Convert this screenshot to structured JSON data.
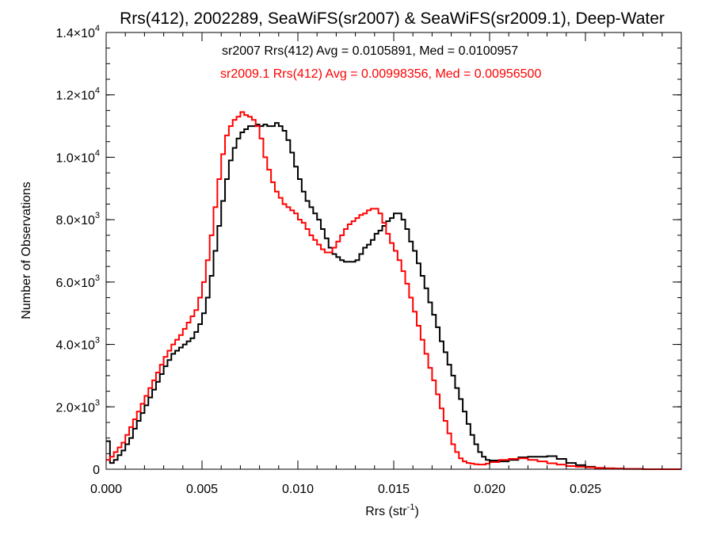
{
  "chart_data": {
    "type": "line",
    "title": "Rrs(412), 2002289, SeaWiFS(sr2007) & SeaWiFS(sr2009.1), Deep-Water",
    "xlabel": "Rrs (str",
    "xlabel_sup": "-1",
    "xlabel_end": ")",
    "ylabel": "Number of Observations",
    "xlim": [
      0,
      0.03
    ],
    "ylim": [
      0,
      14000
    ],
    "x_ticks": [
      {
        "value": 0.0,
        "label": "0.000"
      },
      {
        "value": 0.005,
        "label": "0.005"
      },
      {
        "value": 0.01,
        "label": "0.010"
      },
      {
        "value": 0.015,
        "label": "0.015"
      },
      {
        "value": 0.02,
        "label": "0.020"
      },
      {
        "value": 0.025,
        "label": "0.025"
      }
    ],
    "y_ticks": [
      {
        "value": 0,
        "mant": "0",
        "exp": ""
      },
      {
        "value": 2000,
        "mant": "2.0×10",
        "exp": "3"
      },
      {
        "value": 4000,
        "mant": "4.0×10",
        "exp": "3"
      },
      {
        "value": 6000,
        "mant": "6.0×10",
        "exp": "3"
      },
      {
        "value": 8000,
        "mant": "8.0×10",
        "exp": "3"
      },
      {
        "value": 10000,
        "mant": "1.0×10",
        "exp": "4"
      },
      {
        "value": 12000,
        "mant": "1.2×10",
        "exp": "4"
      },
      {
        "value": 14000,
        "mant": "1.4×10",
        "exp": "4"
      }
    ],
    "x_minor_step": 0.001,
    "y_minor_step": 500,
    "grid": false,
    "series": [
      {
        "name": "sr2007",
        "color": "#000000",
        "annotation": "sr2007 Rrs(412) Avg = 0.0105891, Med = 0.0100957",
        "x": [
          0.0,
          0.0002,
          0.0004,
          0.0006,
          0.0008,
          0.001,
          0.0012,
          0.0014,
          0.0016,
          0.0018,
          0.002,
          0.0022,
          0.0024,
          0.0026,
          0.0028,
          0.003,
          0.0032,
          0.0034,
          0.0036,
          0.0038,
          0.004,
          0.0042,
          0.0044,
          0.0046,
          0.0048,
          0.005,
          0.0052,
          0.0054,
          0.0056,
          0.0058,
          0.006,
          0.0062,
          0.0064,
          0.0066,
          0.0068,
          0.007,
          0.0072,
          0.0074,
          0.0076,
          0.0078,
          0.008,
          0.0082,
          0.0084,
          0.0086,
          0.0088,
          0.009,
          0.0092,
          0.0094,
          0.0096,
          0.0098,
          0.01,
          0.0102,
          0.0104,
          0.0106,
          0.0108,
          0.011,
          0.0112,
          0.0114,
          0.0116,
          0.0118,
          0.012,
          0.0122,
          0.0124,
          0.0126,
          0.0128,
          0.013,
          0.0132,
          0.0134,
          0.0136,
          0.0138,
          0.014,
          0.0142,
          0.0144,
          0.0146,
          0.0148,
          0.015,
          0.0152,
          0.0154,
          0.0156,
          0.0158,
          0.016,
          0.0162,
          0.0164,
          0.0166,
          0.0168,
          0.017,
          0.0172,
          0.0174,
          0.0176,
          0.0178,
          0.018,
          0.0182,
          0.0184,
          0.0186,
          0.0188,
          0.019,
          0.0192,
          0.0194,
          0.0196,
          0.0198,
          0.02,
          0.0205,
          0.021,
          0.0215,
          0.022,
          0.0225,
          0.023,
          0.0235,
          0.024,
          0.0245,
          0.025,
          0.0255,
          0.026,
          0.0265,
          0.027,
          0.028,
          0.029,
          0.03
        ],
        "y": [
          900,
          200,
          300,
          450,
          600,
          800,
          1000,
          1300,
          1550,
          1800,
          2050,
          2300,
          2550,
          2800,
          3050,
          3300,
          3500,
          3700,
          3800,
          3900,
          4000,
          4100,
          4200,
          4400,
          4650,
          5000,
          5500,
          6200,
          7000,
          7800,
          8600,
          9300,
          9900,
          10300,
          10600,
          10800,
          10900,
          11000,
          11000,
          11050,
          11000,
          11050,
          11000,
          11000,
          11100,
          11000,
          10850,
          10550,
          10150,
          9700,
          9300,
          8900,
          8600,
          8400,
          8200,
          8000,
          7700,
          7400,
          7100,
          6900,
          6800,
          6700,
          6650,
          6650,
          6650,
          6700,
          6900,
          7100,
          7200,
          7350,
          7550,
          7650,
          7800,
          7950,
          8050,
          8200,
          8200,
          8000,
          7700,
          7300,
          7000,
          6600,
          6200,
          5800,
          5350,
          4950,
          4550,
          4100,
          3750,
          3350,
          3000,
          2600,
          2250,
          1850,
          1450,
          1100,
          800,
          550,
          400,
          300,
          280,
          250,
          300,
          380,
          400,
          400,
          420,
          330,
          200,
          130,
          80,
          40,
          30,
          20,
          10,
          0,
          0,
          0
        ]
      },
      {
        "name": "sr2009.1",
        "color": "#ff0000",
        "annotation": "sr2009.1 Rrs(412) Avg = 0.00998356, Med = 0.00956500",
        "x": [
          0.0,
          0.0002,
          0.0004,
          0.0006,
          0.0008,
          0.001,
          0.0012,
          0.0014,
          0.0016,
          0.0018,
          0.002,
          0.0022,
          0.0024,
          0.0026,
          0.0028,
          0.003,
          0.0032,
          0.0034,
          0.0036,
          0.0038,
          0.004,
          0.0042,
          0.0044,
          0.0046,
          0.0048,
          0.005,
          0.0052,
          0.0054,
          0.0056,
          0.0058,
          0.006,
          0.0062,
          0.0064,
          0.0066,
          0.0068,
          0.007,
          0.0072,
          0.0074,
          0.0076,
          0.0078,
          0.008,
          0.0082,
          0.0084,
          0.0086,
          0.0088,
          0.009,
          0.0092,
          0.0094,
          0.0096,
          0.0098,
          0.01,
          0.0102,
          0.0104,
          0.0106,
          0.0108,
          0.011,
          0.0112,
          0.0114,
          0.0116,
          0.0118,
          0.012,
          0.0122,
          0.0124,
          0.0126,
          0.0128,
          0.013,
          0.0132,
          0.0134,
          0.0136,
          0.0138,
          0.014,
          0.0142,
          0.0144,
          0.0146,
          0.0148,
          0.015,
          0.0152,
          0.0154,
          0.0156,
          0.0158,
          0.016,
          0.0162,
          0.0164,
          0.0166,
          0.0168,
          0.017,
          0.0172,
          0.0174,
          0.0176,
          0.0178,
          0.018,
          0.0182,
          0.0184,
          0.0186,
          0.0188,
          0.019,
          0.0192,
          0.0194,
          0.0196,
          0.0198,
          0.02,
          0.0205,
          0.021,
          0.0215,
          0.022,
          0.0225,
          0.023,
          0.0235,
          0.024,
          0.0245,
          0.025,
          0.0255,
          0.026,
          0.0265,
          0.027,
          0.028,
          0.029,
          0.03
        ],
        "y": [
          300,
          400,
          550,
          700,
          850,
          1100,
          1350,
          1600,
          1850,
          2100,
          2350,
          2600,
          2850,
          3100,
          3350,
          3600,
          3800,
          4000,
          4150,
          4300,
          4500,
          4700,
          4900,
          5100,
          5500,
          6000,
          6700,
          7500,
          8400,
          9300,
          10100,
          10700,
          11000,
          11200,
          11300,
          11450,
          11350,
          11300,
          11200,
          11000,
          10600,
          10000,
          9600,
          9200,
          8900,
          8700,
          8500,
          8400,
          8300,
          8200,
          8000,
          7900,
          7700,
          7500,
          7350,
          7200,
          7050,
          6950,
          6950,
          7100,
          7300,
          7500,
          7700,
          7850,
          7950,
          8050,
          8150,
          8200,
          8300,
          8350,
          8350,
          8200,
          7900,
          7550,
          7250,
          7000,
          6700,
          6350,
          5950,
          5500,
          5050,
          4600,
          4150,
          3700,
          3250,
          2850,
          2400,
          1950,
          1550,
          1150,
          800,
          550,
          350,
          250,
          200,
          180,
          160,
          150,
          150,
          180,
          230,
          300,
          330,
          350,
          300,
          250,
          190,
          150,
          100,
          80,
          60,
          40,
          30,
          20,
          10,
          0,
          0,
          0
        ]
      }
    ]
  }
}
